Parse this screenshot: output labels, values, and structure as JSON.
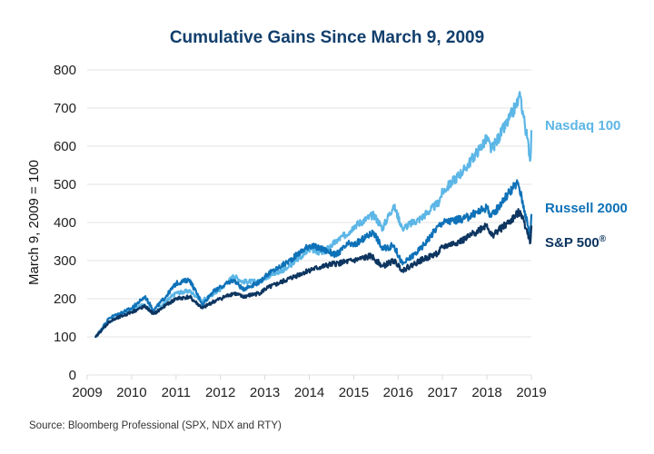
{
  "chart_data": {
    "type": "line",
    "title": "Cumulative Gains Since March 9, 2009",
    "xlabel": "",
    "ylabel": "March 9, 2009 = 100",
    "xlim": [
      2009,
      2019
    ],
    "ylim": [
      0,
      800
    ],
    "x_ticks": [
      "2009",
      "2010",
      "2011",
      "2012",
      "2013",
      "2014",
      "2015",
      "2016",
      "2017",
      "2018",
      "2019"
    ],
    "y_ticks": [
      "0",
      "100",
      "200",
      "300",
      "400",
      "500",
      "600",
      "700",
      "800"
    ],
    "grid": "horizontal",
    "legend": "right (labels at line ends)",
    "source": "Source: Bloomberg Professional (SPX, NDX and RTY)",
    "series": [
      {
        "name": "Nasdaq 100",
        "color": "#5cb6e6",
        "x": [
          2009.19,
          2009.5,
          2010.0,
          2010.3,
          2010.5,
          2010.8,
          2011.0,
          2011.3,
          2011.6,
          2011.8,
          2012.0,
          2012.3,
          2012.5,
          2012.9,
          2013.0,
          2013.5,
          2014.0,
          2014.3,
          2014.6,
          2014.9,
          2015.0,
          2015.45,
          2015.65,
          2015.9,
          2016.1,
          2016.5,
          2016.9,
          2017.0,
          2017.5,
          2018.0,
          2018.1,
          2018.5,
          2018.75,
          2018.85,
          2018.98,
          2019.0
        ],
        "values": [
          100,
          140,
          170,
          185,
          160,
          195,
          215,
          220,
          195,
          210,
          225,
          260,
          245,
          245,
          255,
          280,
          330,
          320,
          350,
          375,
          390,
          420,
          385,
          445,
          385,
          410,
          450,
          480,
          540,
          620,
          590,
          670,
          730,
          660,
          565,
          640
        ]
      },
      {
        "name": "Russell 2000",
        "color": "#0f72b8",
        "x": [
          2009.19,
          2009.5,
          2010.0,
          2010.3,
          2010.5,
          2010.8,
          2011.0,
          2011.3,
          2011.6,
          2011.8,
          2012.0,
          2012.3,
          2012.5,
          2012.9,
          2013.0,
          2013.5,
          2014.0,
          2014.3,
          2014.6,
          2014.9,
          2015.0,
          2015.45,
          2015.65,
          2015.9,
          2016.1,
          2016.5,
          2016.9,
          2017.0,
          2017.5,
          2018.0,
          2018.1,
          2018.5,
          2018.7,
          2018.85,
          2018.98,
          2019.0
        ],
        "values": [
          100,
          150,
          175,
          205,
          170,
          210,
          240,
          250,
          185,
          215,
          230,
          250,
          225,
          245,
          260,
          295,
          340,
          330,
          315,
          345,
          340,
          375,
          330,
          340,
          290,
          330,
          390,
          400,
          410,
          440,
          415,
          480,
          505,
          430,
          360,
          420
        ]
      },
      {
        "name": "S&P 500®",
        "color": "#0d3560",
        "x": [
          2009.19,
          2009.5,
          2010.0,
          2010.3,
          2010.5,
          2010.8,
          2011.0,
          2011.3,
          2011.6,
          2011.8,
          2012.0,
          2012.3,
          2012.5,
          2012.9,
          2013.0,
          2013.5,
          2014.0,
          2014.5,
          2015.0,
          2015.4,
          2015.65,
          2015.9,
          2016.1,
          2016.5,
          2016.9,
          2017.0,
          2017.5,
          2018.0,
          2018.1,
          2018.5,
          2018.75,
          2018.9,
          2018.98,
          2019.0
        ],
        "values": [
          100,
          140,
          165,
          180,
          160,
          185,
          200,
          205,
          175,
          190,
          200,
          215,
          205,
          215,
          225,
          250,
          275,
          290,
          300,
          312,
          285,
          300,
          275,
          300,
          320,
          335,
          355,
          395,
          365,
          400,
          430,
          380,
          348,
          390
        ]
      }
    ]
  }
}
